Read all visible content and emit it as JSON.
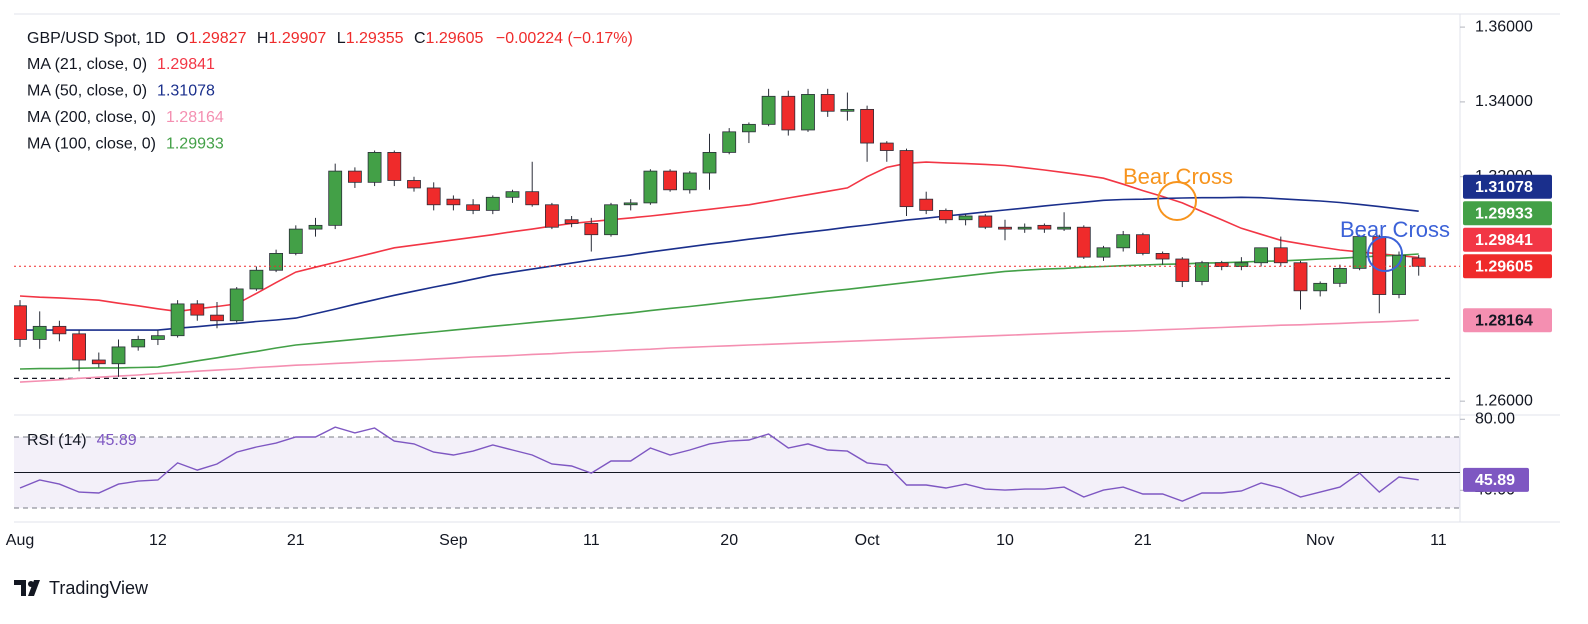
{
  "chart_data": {
    "type": "candlestick",
    "title": "GBP/USD Spot, 1D",
    "ohlc_letters": [
      "O",
      "H",
      "L",
      "C"
    ],
    "change_label": "−0.00224 (−0.17%)",
    "categories": [
      "Aug",
      null,
      null,
      null,
      null,
      null,
      null,
      "12",
      null,
      null,
      null,
      null,
      null,
      null,
      "21",
      null,
      null,
      null,
      null,
      null,
      null,
      null,
      "Sep",
      null,
      null,
      null,
      null,
      null,
      null,
      "11",
      null,
      null,
      null,
      null,
      null,
      null,
      "20",
      null,
      null,
      null,
      null,
      null,
      null,
      "Oct",
      null,
      null,
      null,
      null,
      null,
      null,
      "10",
      null,
      null,
      null,
      null,
      null,
      null,
      "21",
      null,
      null,
      null,
      null,
      null,
      null,
      null,
      null,
      "Nov",
      null,
      null,
      null,
      null,
      null,
      "11"
    ],
    "open": [
      1.2855,
      1.2765,
      1.28,
      1.278,
      1.271,
      1.27,
      1.2745,
      1.2765,
      1.2775,
      1.286,
      1.283,
      1.2815,
      1.29,
      1.295,
      1.2995,
      1.306,
      1.307,
      1.3215,
      1.3185,
      1.3265,
      1.319,
      1.317,
      1.314,
      1.3125,
      1.311,
      1.3145,
      1.316,
      1.3125,
      1.3085,
      1.3075,
      1.3045,
      1.3125,
      1.313,
      1.3215,
      1.3165,
      1.321,
      1.3265,
      1.332,
      1.334,
      1.3415,
      1.3325,
      1.342,
      1.3375,
      1.338,
      1.329,
      1.327,
      1.314,
      1.311,
      1.3085,
      1.3095,
      1.3065,
      1.306,
      1.307,
      1.306,
      1.3065,
      1.2985,
      1.301,
      1.3045,
      1.2995,
      1.298,
      1.292,
      1.297,
      1.296,
      1.297,
      1.301,
      1.297,
      1.2895,
      1.2915,
      1.2955,
      1.304,
      1.2885,
      1.29827,
      null
    ],
    "high": [
      1.287,
      1.284,
      1.2815,
      1.279,
      1.273,
      1.2765,
      1.2775,
      1.279,
      1.287,
      1.287,
      1.2865,
      1.2905,
      1.296,
      1.3005,
      1.307,
      1.309,
      1.3235,
      1.3225,
      1.327,
      1.327,
      1.32,
      1.3185,
      1.315,
      1.314,
      1.315,
      1.3165,
      1.324,
      1.313,
      1.3095,
      1.309,
      1.313,
      1.314,
      1.322,
      1.322,
      1.3215,
      1.3315,
      1.333,
      1.3345,
      1.3435,
      1.343,
      1.3435,
      1.3435,
      1.3425,
      1.339,
      1.3295,
      1.3275,
      1.316,
      1.3115,
      1.31,
      1.31,
      1.3085,
      1.3075,
      1.3075,
      1.3105,
      1.307,
      1.3015,
      1.3055,
      1.305,
      1.3,
      1.2985,
      1.2975,
      1.2975,
      1.2985,
      1.301,
      1.304,
      1.2975,
      1.292,
      1.2965,
      1.3045,
      1.3045,
      1.3,
      1.29907,
      null
    ],
    "low": [
      1.2745,
      1.274,
      1.276,
      1.268,
      1.269,
      1.2665,
      1.2735,
      1.275,
      1.277,
      1.2815,
      1.2795,
      1.281,
      1.2895,
      1.2945,
      1.299,
      1.304,
      1.306,
      1.317,
      1.3175,
      1.3175,
      1.316,
      1.311,
      1.311,
      1.31,
      1.31,
      1.313,
      1.312,
      1.306,
      1.3065,
      1.3,
      1.304,
      1.311,
      1.3125,
      1.316,
      1.3155,
      1.3165,
      1.326,
      1.329,
      1.3335,
      1.331,
      1.332,
      1.336,
      1.335,
      1.324,
      1.324,
      1.3095,
      1.31,
      1.3075,
      1.307,
      1.306,
      1.303,
      1.305,
      1.305,
      1.3055,
      1.298,
      1.2975,
      1.3,
      1.299,
      1.2965,
      1.2905,
      1.291,
      1.295,
      1.295,
      1.296,
      1.296,
      1.2845,
      1.288,
      1.2905,
      1.295,
      1.2835,
      1.2875,
      1.29355,
      null
    ],
    "close": [
      1.2765,
      1.28,
      1.278,
      1.271,
      1.27,
      1.2745,
      1.2765,
      1.2775,
      1.286,
      1.283,
      1.2815,
      1.29,
      1.295,
      1.2995,
      1.306,
      1.307,
      1.3215,
      1.3185,
      1.3265,
      1.319,
      1.317,
      1.3125,
      1.3125,
      1.311,
      1.3145,
      1.316,
      1.3125,
      1.3065,
      1.3075,
      1.3045,
      1.3125,
      1.313,
      1.3215,
      1.3165,
      1.321,
      1.3265,
      1.332,
      1.334,
      1.3415,
      1.3325,
      1.342,
      1.3375,
      1.338,
      1.329,
      1.327,
      1.312,
      1.311,
      1.3085,
      1.3095,
      1.3065,
      1.306,
      1.3065,
      1.306,
      1.3065,
      1.2985,
      1.301,
      1.3045,
      1.2995,
      1.298,
      1.292,
      1.297,
      1.296,
      1.297,
      1.301,
      1.297,
      1.2895,
      1.2915,
      1.2955,
      1.304,
      1.2885,
      1.299,
      1.29605,
      null
    ],
    "up_color": "#43a047",
    "down_color": "#ef2b2b",
    "series": [
      {
        "name": "MA (21, close, 0)",
        "color": "#f23645",
        "values": [
          1.2881,
          1.2878,
          1.2876,
          1.2873,
          1.287,
          1.2862,
          1.2855,
          1.2847,
          1.284,
          1.2847,
          1.2853,
          1.286,
          1.2888,
          1.2917,
          1.2945,
          1.2958,
          1.2971,
          1.2984,
          1.2997,
          1.301,
          1.3017,
          1.3024,
          1.3031,
          1.3038,
          1.3045,
          1.3053,
          1.306,
          1.3068,
          1.3075,
          1.308,
          1.3085,
          1.309,
          1.3095,
          1.3101,
          1.3107,
          1.3113,
          1.3119,
          1.3125,
          1.3134,
          1.3143,
          1.3152,
          1.3161,
          1.317,
          1.32,
          1.3225,
          1.3236,
          1.3239,
          1.3237,
          1.3235,
          1.3233,
          1.323,
          1.3224,
          1.3218,
          1.3211,
          1.3204,
          1.3196,
          1.318,
          1.3163,
          1.3147,
          1.313,
          1.3107,
          1.3085,
          1.3062,
          1.3046,
          1.303,
          1.3021,
          1.3012,
          1.3004,
          1.2999,
          1.2994,
          1.2989,
          1.29841,
          null
        ]
      },
      {
        "name": "MA (50, close, 0)",
        "color": "#1a2f8c",
        "values": [
          1.279,
          1.279,
          1.279,
          1.279,
          1.279,
          1.279,
          1.279,
          1.279,
          1.2795,
          1.2799,
          1.2804,
          1.2808,
          1.2813,
          1.2817,
          1.2822,
          1.2834,
          1.2846,
          1.2859,
          1.2871,
          1.2883,
          1.2894,
          1.2905,
          1.2915,
          1.2926,
          1.2937,
          1.2945,
          1.2953,
          1.2961,
          1.2969,
          1.2977,
          1.2984,
          1.2991,
          1.2999,
          1.3006,
          1.3013,
          1.302,
          1.3026,
          1.3033,
          1.3039,
          1.3046,
          1.3052,
          1.3058,
          1.3065,
          1.3071,
          1.3078,
          1.3084,
          1.3089,
          1.3095,
          1.31,
          1.3106,
          1.3111,
          1.3116,
          1.3122,
          1.3127,
          1.3132,
          1.3137,
          1.3139,
          1.314,
          1.3142,
          1.3143,
          1.3144,
          1.3144,
          1.3145,
          1.3144,
          1.3141,
          1.3138,
          1.3135,
          1.3131,
          1.3126,
          1.312,
          1.3114,
          1.31078,
          null
        ]
      },
      {
        "name": "MA (200, close, 0)",
        "color": "#f48fb1",
        "values": [
          1.2651,
          1.2654,
          1.2657,
          1.2661,
          1.2664,
          1.2667,
          1.267,
          1.2674,
          1.2677,
          1.268,
          1.2683,
          1.2686,
          1.269,
          1.2693,
          1.2696,
          1.2698,
          1.2701,
          1.2703,
          1.2706,
          1.2708,
          1.271,
          1.2713,
          1.2715,
          1.2718,
          1.272,
          1.2722,
          1.2725,
          1.2727,
          1.273,
          1.2732,
          1.2734,
          1.2737,
          1.2739,
          1.2742,
          1.2744,
          1.2746,
          1.2748,
          1.275,
          1.2752,
          1.2754,
          1.2756,
          1.2758,
          1.276,
          1.2762,
          1.2764,
          1.2766,
          1.2768,
          1.277,
          1.2772,
          1.2774,
          1.2776,
          1.2778,
          1.278,
          1.2782,
          1.2784,
          1.2786,
          1.2787,
          1.2789,
          1.2791,
          1.2793,
          1.2795,
          1.2797,
          1.2799,
          1.2801,
          1.2803,
          1.2804,
          1.2806,
          1.2808,
          1.281,
          1.2812,
          1.2814,
          1.28164,
          null
        ]
      },
      {
        "name": "MA (100, close, 0)",
        "color": "#43a047",
        "values": [
          1.2686,
          1.2687,
          1.2687,
          1.2688,
          1.2689,
          1.2689,
          1.269,
          1.2691,
          1.2699,
          1.2708,
          1.2716,
          1.2725,
          1.2733,
          1.2742,
          1.275,
          1.2755,
          1.276,
          1.2765,
          1.277,
          1.2775,
          1.278,
          1.2785,
          1.279,
          1.2795,
          1.28,
          1.2805,
          1.281,
          1.2815,
          1.282,
          1.2825,
          1.2831,
          1.2836,
          1.2842,
          1.2848,
          1.2853,
          1.2859,
          1.2865,
          1.2871,
          1.2876,
          1.2882,
          1.2888,
          1.2894,
          1.2899,
          1.2905,
          1.2911,
          1.2917,
          1.2923,
          1.2929,
          1.2935,
          1.2941,
          1.2947,
          1.295,
          1.2953,
          1.2955,
          1.2958,
          1.296,
          1.2962,
          1.2964,
          1.2966,
          1.2967,
          1.2969,
          1.297,
          1.2972,
          1.2974,
          1.2975,
          1.2977,
          1.298,
          1.2982,
          1.2985,
          1.2988,
          1.299,
          1.29933,
          null
        ]
      }
    ],
    "support_line": 1.2661,
    "ylim": [
      1.2563,
      1.3635
    ],
    "yticks": [
      {
        "value": 1.26,
        "label": "1.26000"
      },
      {
        "value": 1.32,
        "label": "1.32000"
      },
      {
        "value": 1.34,
        "label": "1.34000"
      },
      {
        "value": 1.36,
        "label": "1.36000"
      }
    ],
    "grid": false,
    "annotations": [
      {
        "text": "Bear Cross",
        "color": "#f7941d"
      },
      {
        "text": "Bear Cross",
        "color": "#3c62d8"
      }
    ],
    "rsi": {
      "name": "RSI (14)",
      "color": "#7e57c2",
      "values": [
        41.3,
        45.8,
        43.5,
        39.0,
        38.5,
        43.5,
        45.2,
        45.8,
        55.4,
        51.4,
        54.8,
        61.5,
        64.4,
        66.6,
        70.0,
        70.0,
        75.6,
        72.3,
        75.1,
        67.7,
        66.1,
        61.5,
        59.9,
        62.1,
        65.5,
        62.7,
        59.9,
        54.8,
        53.7,
        49.7,
        56.5,
        56.5,
        63.8,
        59.9,
        62.7,
        66.1,
        67.7,
        68.3,
        71.7,
        63.8,
        66.1,
        62.7,
        62.1,
        55.4,
        54.2,
        43.0,
        43.0,
        41.3,
        43.5,
        40.7,
        40.1,
        40.7,
        40.7,
        41.8,
        36.2,
        40.1,
        41.8,
        37.9,
        37.9,
        33.9,
        38.5,
        38.5,
        39.6,
        44.1,
        41.3,
        36.2,
        39.0,
        41.8,
        49.7,
        39.0,
        47.5,
        45.89,
        null
      ],
      "ylim": [
        24.4,
        82.4
      ],
      "yticks": [
        {
          "value": 80,
          "label": "80.00"
        },
        {
          "value": 40,
          "label": "40.00"
        }
      ],
      "bands": [
        30,
        70
      ],
      "midline": 50
    },
    "footer": "TradingView"
  }
}
